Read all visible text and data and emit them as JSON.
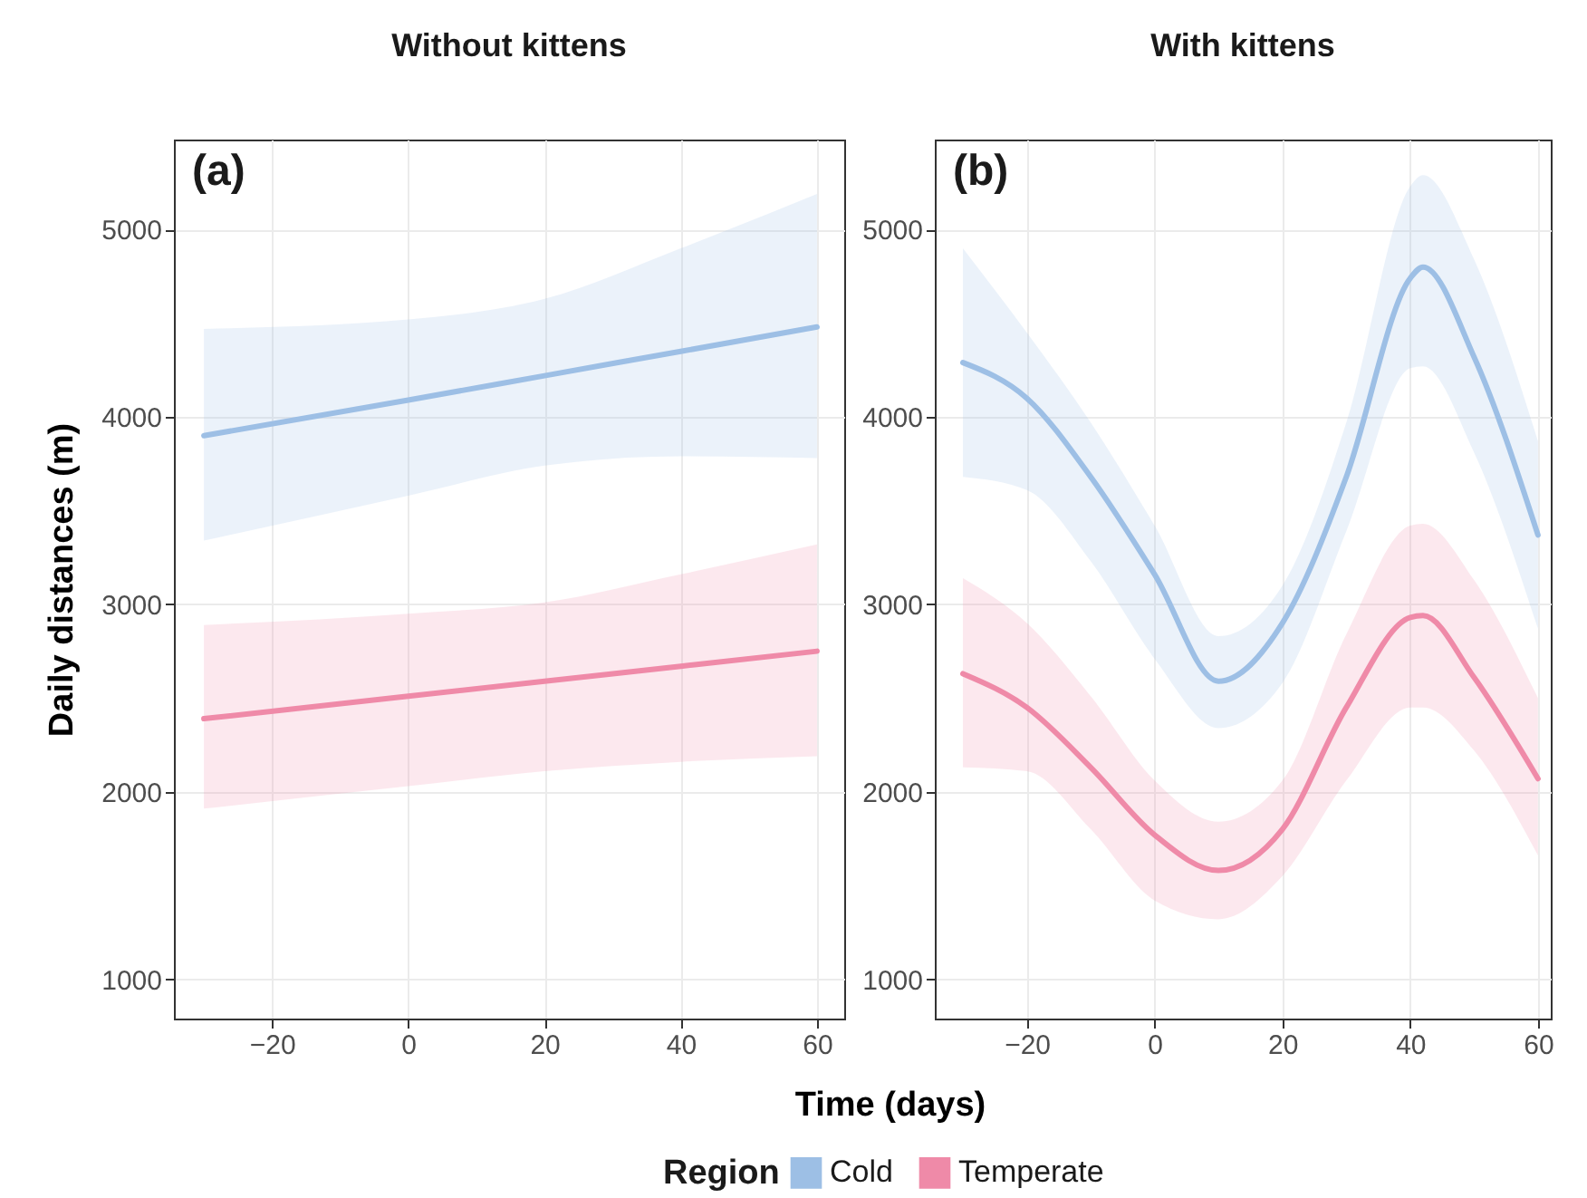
{
  "chart_data": [
    {
      "type": "line",
      "title": "Without kittens",
      "xlabel": "Time (days)",
      "ylabel": "Daily distances (m)",
      "annotations": [
        "(a)"
      ],
      "xlim": [
        -34.4,
        64
      ],
      "ylim": [
        790,
        5480
      ],
      "xticks": [
        -20,
        0,
        20,
        40,
        60
      ],
      "yticks": [
        1000,
        2000,
        3000,
        4000,
        5000
      ],
      "grid": true,
      "legend": "bottom",
      "series": [
        {
          "name": "Cold",
          "color": "#9dbfe5",
          "x": [
            -30,
            0,
            20,
            40,
            60
          ],
          "values": [
            3900,
            4090,
            4220,
            4350,
            4480
          ],
          "lower": [
            3340,
            3580,
            3740,
            3790,
            3780
          ],
          "upper": [
            4470,
            4520,
            4630,
            4900,
            5190
          ]
        },
        {
          "name": "Temperate",
          "color": "#ef8aa8",
          "x": [
            -30,
            0,
            20,
            40,
            60
          ],
          "values": [
            2390,
            2510,
            2590,
            2670,
            2750
          ],
          "lower": [
            1910,
            2030,
            2110,
            2160,
            2190
          ],
          "upper": [
            2890,
            2950,
            3010,
            3160,
            3320
          ]
        }
      ]
    },
    {
      "type": "line",
      "title": "With kittens",
      "legend_title": "Region",
      "annotations": [
        "(b)"
      ],
      "xlim": [
        -34.4,
        62
      ],
      "ylim": [
        790,
        5480
      ],
      "xticks": [
        -20,
        0,
        20,
        40,
        60
      ],
      "yticks": [
        1000,
        2000,
        3000,
        4000,
        5000
      ],
      "grid": true,
      "legend": "bottom",
      "series": [
        {
          "name": "Cold",
          "color": "#9dbfe5",
          "x": [
            -30,
            -20,
            -10,
            0,
            10,
            20,
            30,
            40,
            42,
            50,
            60
          ],
          "values": [
            4290,
            4100,
            3680,
            3160,
            2590,
            2900,
            3680,
            4740,
            4800,
            4320,
            3370
          ],
          "lower": [
            3680,
            3610,
            3230,
            2710,
            2340,
            2580,
            3390,
            4260,
            4270,
            3810,
            2870
          ],
          "upper": [
            4900,
            4450,
            3970,
            3420,
            2830,
            3100,
            3970,
            5230,
            5290,
            4840,
            3870
          ]
        },
        {
          "name": "Temperate",
          "color": "#ef8aa8",
          "x": [
            -30,
            -20,
            -10,
            0,
            10,
            20,
            30,
            40,
            42,
            50,
            60
          ],
          "values": [
            2630,
            2450,
            2130,
            1770,
            1580,
            1800,
            2450,
            2930,
            2940,
            2610,
            2070
          ],
          "lower": [
            2130,
            2110,
            1800,
            1420,
            1320,
            1550,
            2060,
            2450,
            2450,
            2220,
            1660
          ],
          "upper": [
            3140,
            2900,
            2510,
            2060,
            1840,
            2060,
            2840,
            3420,
            3430,
            3130,
            2500
          ]
        }
      ]
    }
  ]
}
